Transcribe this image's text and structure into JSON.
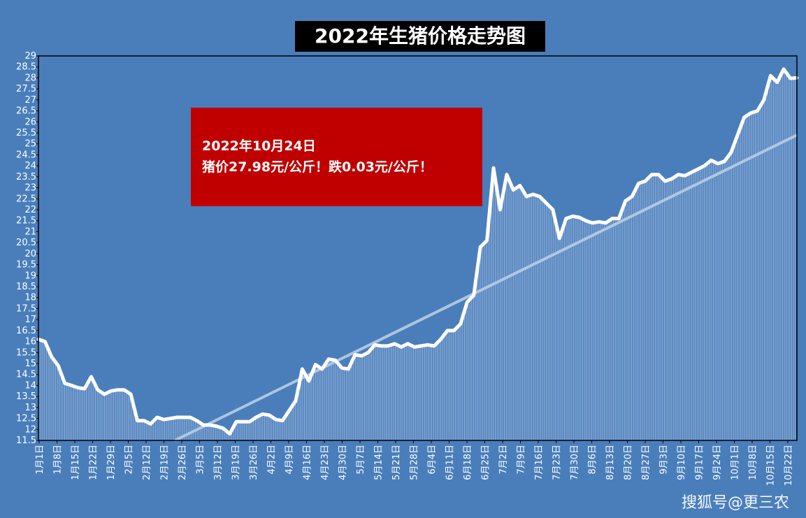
{
  "title": "2022年生猪价格走势图",
  "annotation": {
    "line1": "2022年10月24日",
    "line2": "猪价27.98元/公斤！跌0.03元/公斤！"
  },
  "watermark": "搜狐号@更三农",
  "colors": {
    "background": "#4a7ebb",
    "line": "#ffffff",
    "bars": "#a9c0e0",
    "trend": "#b8cde6",
    "annotation_bg": "#c00000",
    "title_bg": "#000000"
  },
  "chart_data": {
    "type": "line",
    "title": "2022年生猪价格走势图",
    "xlabel": "",
    "ylabel": "",
    "ylim": [
      11.5,
      29
    ],
    "yticks": [
      "11.5",
      "12",
      "12.5",
      "13",
      "13.5",
      "14",
      "14.5",
      "15",
      "15.5",
      "16",
      "16.5",
      "17",
      "17.5",
      "18",
      "18.5",
      "19",
      "19.5",
      "20",
      "20.5",
      "21",
      "21.5",
      "22",
      "22.5",
      "23",
      "23.5",
      "24",
      "24.5",
      "25",
      "25.5",
      "26",
      "26.5",
      "27",
      "27.5",
      "28",
      "28.5",
      "29"
    ],
    "x_tick_labels": [
      "1月1日",
      "1月8日",
      "1月15日",
      "1月22日",
      "1月29日",
      "2月5日",
      "2月12日",
      "2月19日",
      "2月26日",
      "3月5日",
      "3月12日",
      "3月19日",
      "3月26日",
      "4月2日",
      "4月9日",
      "4月16日",
      "4月23日",
      "4月30日",
      "5月7日",
      "5月14日",
      "5月21日",
      "5月28日",
      "6月4日",
      "6月11日",
      "6月18日",
      "6月25日",
      "7月2日",
      "7月9日",
      "7月16日",
      "7月23日",
      "7月30日",
      "8月6日",
      "8月13日",
      "8月20日",
      "8月27日",
      "9月3日",
      "9月10日",
      "9月17日",
      "9月24日",
      "10月1日",
      "10月8日",
      "10月15日",
      "10月22日"
    ],
    "series": [
      {
        "values": [
          16.1,
          16.0,
          15.3,
          14.9,
          14.1,
          14.0,
          13.9,
          13.85,
          14.4,
          13.8,
          13.6,
          13.75,
          13.8,
          13.8,
          13.6,
          12.4,
          12.4,
          12.25,
          12.55,
          12.45,
          12.5,
          12.55,
          12.55,
          12.55,
          12.4,
          12.2,
          12.2,
          12.15,
          12.05,
          11.8,
          12.35,
          12.35,
          12.35,
          12.55,
          12.7,
          12.65,
          12.45,
          12.4,
          12.85,
          13.3,
          14.75,
          14.2,
          14.95,
          14.75,
          15.2,
          15.15,
          14.8,
          14.75,
          15.4,
          15.35,
          15.5,
          15.85,
          15.8,
          15.8,
          15.9,
          15.75,
          15.9,
          15.75,
          15.8,
          15.85,
          15.8,
          16.1,
          16.5,
          16.5,
          16.8,
          17.8,
          18.1,
          20.3,
          20.6,
          23.9,
          22.0,
          23.6,
          22.9,
          23.1,
          22.6,
          22.7,
          22.6,
          22.3,
          22.0,
          20.7,
          21.6,
          21.7,
          21.65,
          21.5,
          21.4,
          21.45,
          21.4,
          21.6,
          21.6,
          22.4,
          22.6,
          23.2,
          23.3,
          23.6,
          23.6,
          23.3,
          23.4,
          23.6,
          23.55,
          23.7,
          23.85,
          24.0,
          24.25,
          24.1,
          24.2,
          24.6,
          25.4,
          26.2,
          26.4,
          26.5,
          27.0,
          28.1,
          27.8,
          28.4,
          27.98,
          28.0
        ]
      }
    ],
    "trend_start": [
      0.18,
      11.5
    ],
    "trend_end": [
      1.0,
      25.4
    ],
    "grid": false,
    "legend": "none"
  }
}
